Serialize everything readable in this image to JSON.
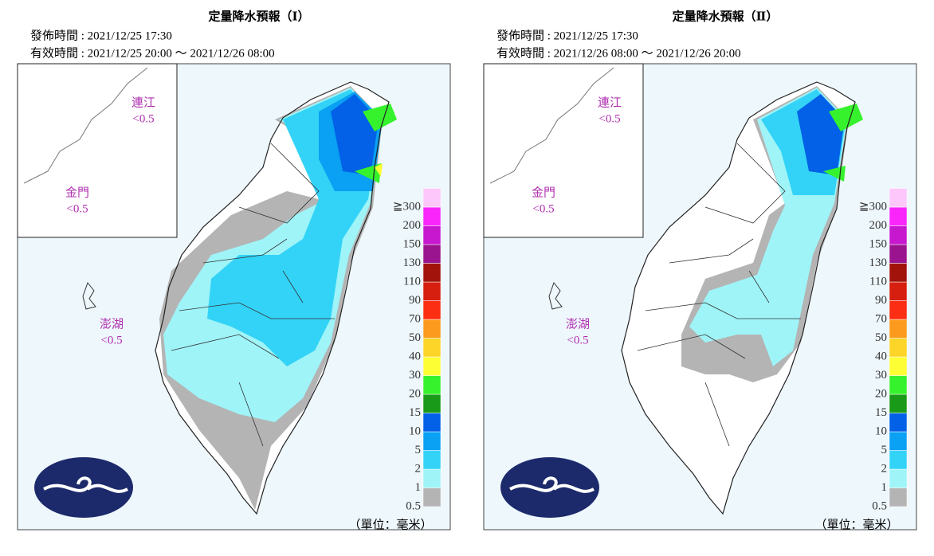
{
  "panels": [
    {
      "title": "定量降水預報（Ⅰ）",
      "issued": "發佈時間 : 2021/12/25 17:30",
      "valid": "有效時間 : 2021/12/25 20:00 ～ 2021/12/26 08:00",
      "islands": [
        {
          "name": "連江",
          "value": "<0.5"
        },
        {
          "name": "金門",
          "value": "<0.5"
        },
        {
          "name": "澎湖",
          "value": "<0.5"
        }
      ],
      "unit": "（單位：毫米）"
    },
    {
      "title": "定量降水預報（Ⅱ）",
      "issued": "發佈時間 : 2021/12/25 17:30",
      "valid": "有效時間 : 2021/12/26 08:00 ～ 2021/12/26 20:00",
      "islands": [
        {
          "name": "連江",
          "value": "<0.5"
        },
        {
          "name": "金門",
          "value": "<0.5"
        },
        {
          "name": "澎湖",
          "value": "<0.5"
        }
      ],
      "unit": "（單位：毫米）"
    }
  ],
  "legend": [
    {
      "label": "0.5",
      "color": "#b4b4b4"
    },
    {
      "label": "1",
      "color": "#9ff4f8"
    },
    {
      "label": "2",
      "color": "#33d3f7"
    },
    {
      "label": "5",
      "color": "#0aa0f3"
    },
    {
      "label": "10",
      "color": "#0261e6"
    },
    {
      "label": "15",
      "color": "#1a9a19"
    },
    {
      "label": "20",
      "color": "#36f22d"
    },
    {
      "label": "30",
      "color": "#fefe35"
    },
    {
      "label": "40",
      "color": "#fdd428"
    },
    {
      "label": "50",
      "color": "#fb9a1c"
    },
    {
      "label": "70",
      "color": "#fb2d13"
    },
    {
      "label": "90",
      "color": "#d71f0f"
    },
    {
      "label": "110",
      "color": "#a2130b"
    },
    {
      "label": "130",
      "color": "#9b148f"
    },
    {
      "label": "150",
      "color": "#c718cf"
    },
    {
      "label": "200",
      "color": "#f925fb"
    },
    {
      "label": "≧300",
      "color": "#fdc7fc"
    }
  ]
}
